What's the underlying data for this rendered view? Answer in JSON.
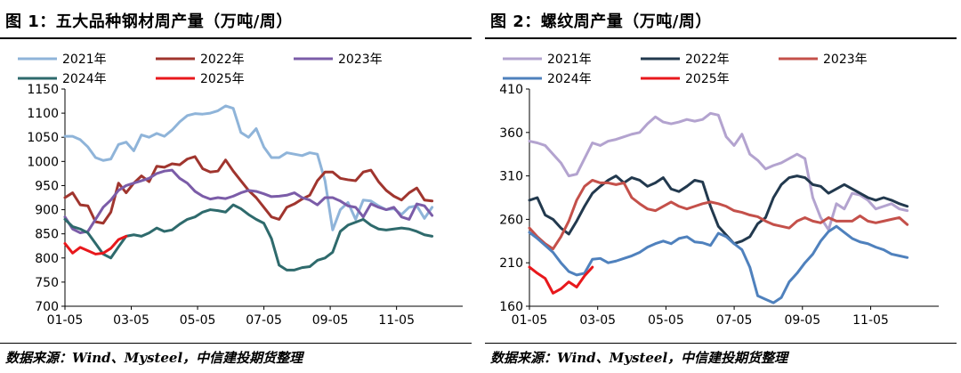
{
  "charts": [
    {
      "title": "图 1：五大品种钢材周产量（万吨/周）",
      "source": "数据来源：Wind、Mysteel，中信建投期货整理"
    },
    {
      "title": "图 2：螺纹周产量（万吨/周）",
      "source": "数据来源：Wind、Mysteel，中信建投期货整理"
    }
  ],
  "chart_data": [
    {
      "type": "line",
      "title": "图 1：五大品种钢材周产量（万吨/周）",
      "xlabel": "",
      "ylabel": "",
      "x_ticks": [
        "01-05",
        "03-05",
        "05-05",
        "07-05",
        "09-05",
        "11-05"
      ],
      "ylim": [
        700,
        1150
      ],
      "y_ticks": [
        700,
        750,
        800,
        850,
        900,
        950,
        1000,
        1050,
        1100,
        1150
      ],
      "grid": false,
      "legend": "top",
      "series": [
        {
          "name": "2021年",
          "color": "#8FB4D9",
          "values": [
            1052,
            1052,
            1045,
            1030,
            1008,
            1002,
            1005,
            1035,
            1040,
            1022,
            1055,
            1050,
            1058,
            1052,
            1065,
            1082,
            1095,
            1099,
            1098,
            1100,
            1105,
            1115,
            1110,
            1060,
            1050,
            1068,
            1030,
            1008,
            1008,
            1018,
            1015,
            1012,
            1018,
            1015,
            960,
            858,
            900,
            915,
            880,
            920,
            918,
            908,
            900,
            902,
            890,
            905,
            908,
            882,
            905
          ]
        },
        {
          "name": "2022年",
          "color": "#A0352E",
          "values": [
            925,
            935,
            910,
            908,
            875,
            872,
            895,
            955,
            935,
            955,
            970,
            958,
            990,
            988,
            995,
            993,
            1005,
            1010,
            985,
            978,
            980,
            1003,
            980,
            960,
            940,
            925,
            905,
            885,
            880,
            905,
            912,
            922,
            930,
            960,
            978,
            978,
            965,
            962,
            960,
            978,
            982,
            958,
            940,
            928,
            920,
            935,
            945,
            920,
            918
          ]
        },
        {
          "name": "2023年",
          "color": "#7B5CA8",
          "values": [
            885,
            860,
            852,
            855,
            880,
            905,
            920,
            940,
            950,
            955,
            960,
            965,
            975,
            980,
            982,
            965,
            955,
            938,
            928,
            922,
            925,
            923,
            928,
            935,
            940,
            938,
            933,
            927,
            928,
            930,
            935,
            925,
            920,
            910,
            925,
            925,
            918,
            908,
            905,
            885,
            912,
            905,
            900,
            905,
            885,
            880,
            912,
            908,
            888
          ]
        },
        {
          "name": "2024年",
          "color": "#2E6A6C",
          "values": [
            880,
            865,
            860,
            852,
            830,
            808,
            800,
            823,
            845,
            848,
            845,
            852,
            862,
            855,
            858,
            870,
            880,
            885,
            895,
            900,
            898,
            895,
            910,
            902,
            890,
            880,
            872,
            840,
            785,
            775,
            775,
            780,
            782,
            795,
            800,
            812,
            855,
            868,
            874,
            880,
            868,
            860,
            858,
            860,
            862,
            860,
            855,
            848,
            845
          ]
        },
        {
          "name": "2025年",
          "color": "#E8181C",
          "values": [
            830,
            810,
            822,
            815,
            808,
            810,
            820,
            838,
            845
          ]
        }
      ]
    },
    {
      "type": "line",
      "title": "图 2：螺纹周产量（万吨/周）",
      "xlabel": "",
      "ylabel": "",
      "x_ticks": [
        "01-05",
        "03-05",
        "05-05",
        "07-05",
        "09-05",
        "11-05"
      ],
      "ylim": [
        160,
        410
      ],
      "y_ticks": [
        160,
        210,
        260,
        310,
        360,
        410
      ],
      "grid": false,
      "legend": "top",
      "series": [
        {
          "name": "2021年",
          "color": "#B3A3CF",
          "values": [
            350,
            348,
            345,
            335,
            325,
            310,
            312,
            330,
            348,
            345,
            350,
            352,
            355,
            358,
            360,
            370,
            378,
            372,
            370,
            372,
            375,
            373,
            375,
            382,
            380,
            355,
            345,
            358,
            335,
            328,
            318,
            322,
            325,
            330,
            335,
            330,
            285,
            262,
            248,
            278,
            272,
            290,
            288,
            282,
            272,
            275,
            278,
            272,
            270
          ]
        },
        {
          "name": "2022年",
          "color": "#22394E",
          "values": [
            282,
            285,
            265,
            260,
            250,
            243,
            258,
            275,
            290,
            298,
            305,
            310,
            302,
            308,
            305,
            298,
            302,
            308,
            295,
            292,
            298,
            305,
            303,
            275,
            252,
            242,
            232,
            235,
            240,
            255,
            262,
            285,
            300,
            308,
            310,
            308,
            300,
            298,
            290,
            295,
            300,
            295,
            290,
            285,
            282,
            285,
            282,
            278,
            275
          ]
        },
        {
          "name": "2023年",
          "color": "#C4504A",
          "values": [
            250,
            240,
            232,
            226,
            240,
            258,
            282,
            298,
            305,
            302,
            302,
            300,
            302,
            285,
            278,
            272,
            270,
            275,
            280,
            275,
            272,
            275,
            278,
            280,
            278,
            275,
            270,
            268,
            265,
            263,
            258,
            254,
            252,
            250,
            258,
            262,
            258,
            256,
            262,
            258,
            258,
            258,
            264,
            258,
            256,
            258,
            260,
            262,
            254
          ]
        },
        {
          "name": "2024年",
          "color": "#4F81BD",
          "values": [
            245,
            238,
            230,
            222,
            210,
            200,
            196,
            198,
            214,
            215,
            210,
            212,
            215,
            218,
            222,
            228,
            232,
            235,
            232,
            238,
            240,
            234,
            233,
            230,
            244,
            240,
            232,
            225,
            205,
            172,
            168,
            164,
            170,
            188,
            198,
            210,
            220,
            235,
            246,
            252,
            245,
            238,
            234,
            232,
            228,
            225,
            220,
            218,
            216
          ]
        },
        {
          "name": "2025年",
          "color": "#E8181C",
          "values": [
            205,
            198,
            192,
            175,
            180,
            188,
            182,
            195,
            205
          ]
        }
      ]
    }
  ]
}
